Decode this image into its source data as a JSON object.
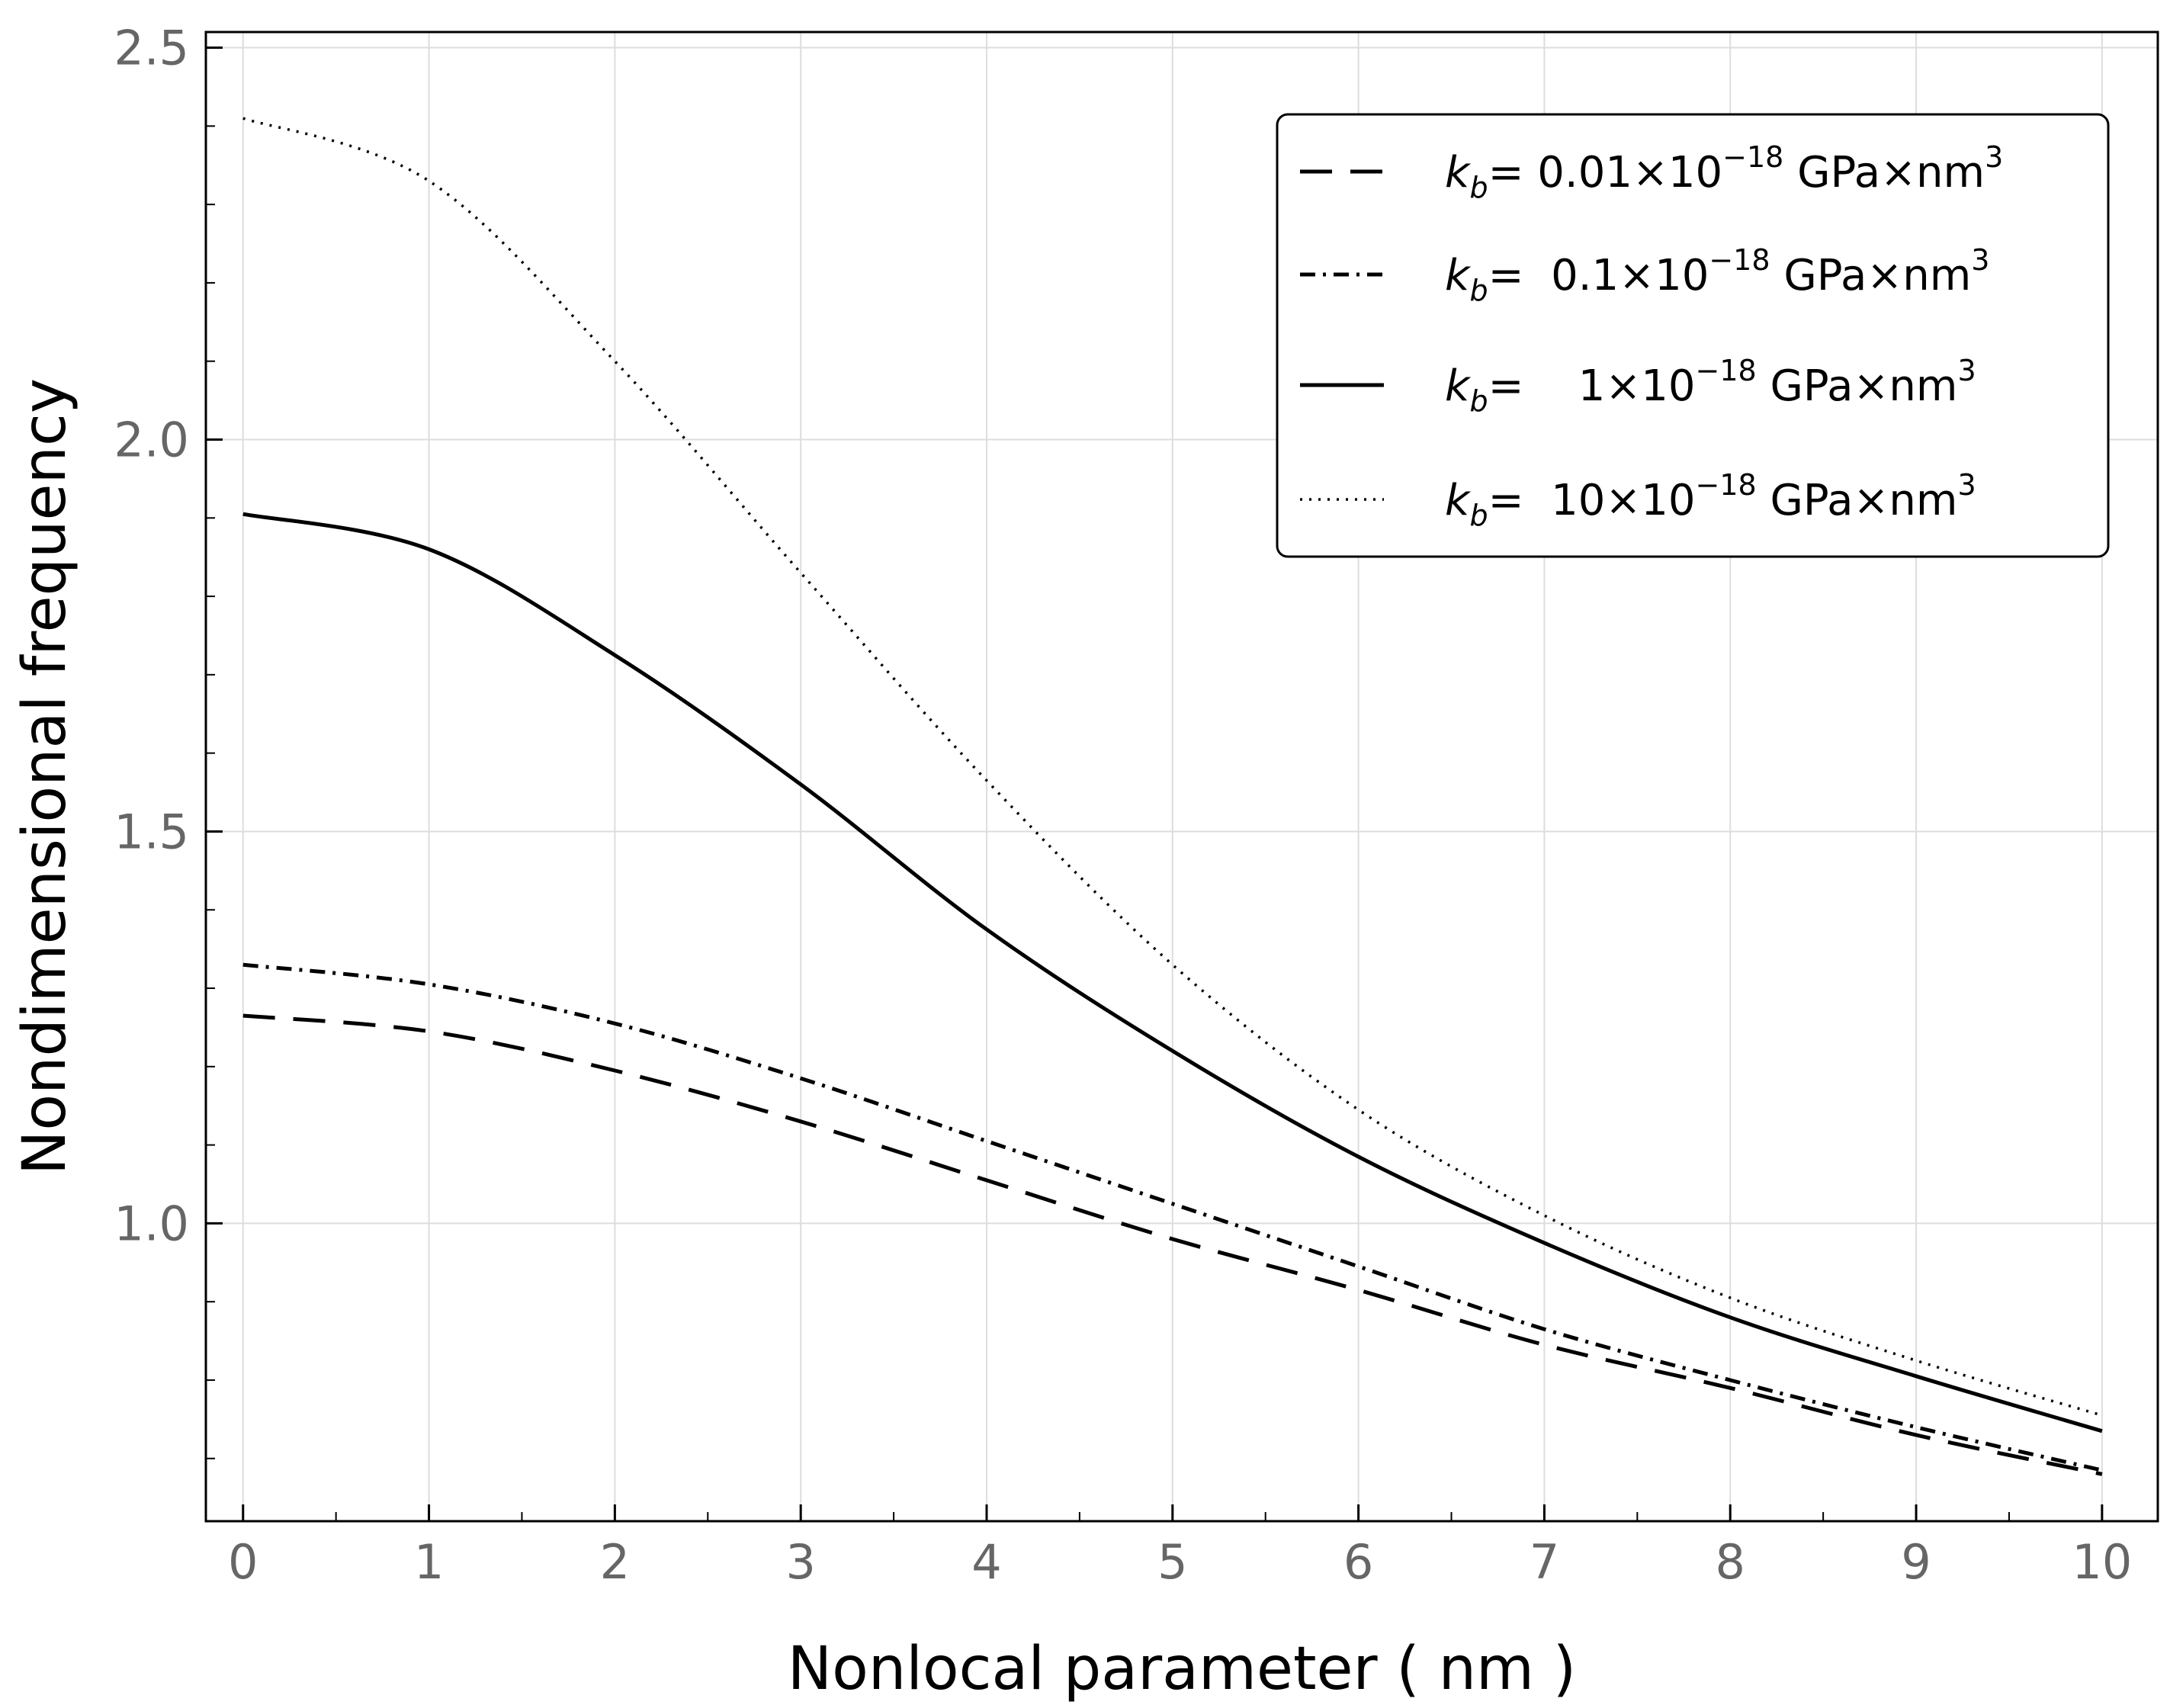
{
  "chart_data": {
    "type": "line",
    "xlabel": "Nonlocal parameter ( nm )",
    "ylabel": "Nondimensional  frequency",
    "xlim": [
      -0.2,
      10.3
    ],
    "ylim": [
      0.62,
      2.52
    ],
    "x_ticks": [
      0,
      1,
      2,
      3,
      4,
      5,
      6,
      7,
      8,
      9,
      10
    ],
    "x_tick_labels": [
      "0",
      "1",
      "2",
      "3",
      "4",
      "5",
      "6",
      "7",
      "8",
      "9",
      "10"
    ],
    "y_ticks": [
      1.0,
      1.5,
      2.0,
      2.5
    ],
    "y_tick_labels": [
      "1.0",
      "1.5",
      "2.0",
      "2.5"
    ],
    "grid": true,
    "legend_position": "top-right",
    "x": [
      0,
      1,
      2,
      3,
      4,
      5,
      6,
      7,
      8,
      9,
      10
    ],
    "series": [
      {
        "name": "kb = 0.01×10^-18 GPa×nm^3",
        "style": "dashed",
        "legend": {
          "k": "k",
          "sub": "b",
          "eq": "= 0.01×10",
          "exp": "−18",
          "unit": " GPa×nm",
          "unit_exp": "3"
        },
        "values": [
          1.265,
          1.245,
          1.195,
          1.13,
          1.055,
          0.98,
          0.915,
          0.845,
          0.79,
          0.73,
          0.68
        ]
      },
      {
        "name": "kb = 0.1×10^-18 GPa×nm^3",
        "style": "dashdot",
        "legend": {
          "k": "k",
          "sub": "b",
          "eq": "=  0.1×10",
          "exp": "−18",
          "unit": " GPa×nm",
          "unit_exp": "3"
        },
        "values": [
          1.33,
          1.305,
          1.255,
          1.185,
          1.105,
          1.025,
          0.945,
          0.865,
          0.8,
          0.74,
          0.685
        ]
      },
      {
        "name": "kb = 1×10^-18 GPa×nm^3",
        "style": "solid",
        "legend": {
          "k": "k",
          "sub": "b",
          "eq": "=    1×10",
          "exp": "−18",
          "unit": " GPa×nm",
          "unit_exp": "3"
        },
        "values": [
          1.905,
          1.86,
          1.725,
          1.56,
          1.375,
          1.22,
          1.085,
          0.975,
          0.88,
          0.805,
          0.735
        ]
      },
      {
        "name": "kb = 10×10^-18 GPa×nm^3",
        "style": "dotted",
        "legend": {
          "k": "k",
          "sub": "b",
          "eq": "=  10×10",
          "exp": "−18",
          "unit": " GPa×nm",
          "unit_exp": "3"
        },
        "values": [
          2.41,
          2.33,
          2.1,
          1.83,
          1.565,
          1.33,
          1.145,
          1.01,
          0.905,
          0.825,
          0.755
        ]
      }
    ]
  }
}
